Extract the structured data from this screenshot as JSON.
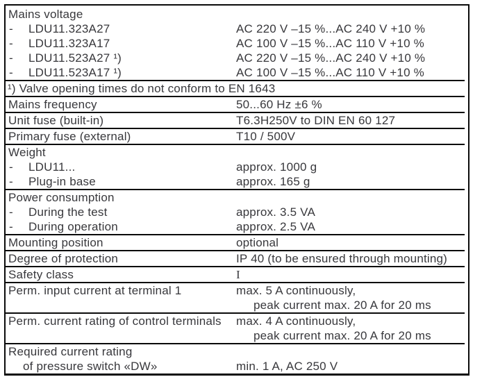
{
  "document": {
    "kind": "technical-data-table",
    "colors": {
      "text": "#38383c",
      "rule": "#0a0a0a",
      "background": "#ffffff"
    }
  },
  "table": {
    "groups": [
      {
        "rows": [
          {
            "label": "Mains voltage"
          },
          {
            "dash": "-",
            "label": "LDU11.323A27",
            "value": "AC 220 V –15 %...AC 240 V +10 %"
          },
          {
            "dash": "-",
            "label": "LDU11.323A17",
            "value": "AC 100 V –15 %...AC 110 V +10 %"
          },
          {
            "dash": "-",
            "label": "LDU11.523A27 ¹)",
            "value": "AC 220 V –15 %...AC 240 V +10 %"
          },
          {
            "dash": "-",
            "label": "LDU11.523A17 ¹)",
            "value": "AC 100 V –15 %...AC 110 V +10 %"
          }
        ]
      },
      {
        "rows": [
          {
            "footnote": "¹) Valve opening times do not conform to EN 1643"
          }
        ]
      },
      {
        "rows": [
          {
            "label": "Mains frequency",
            "value": "50...60 Hz ±6 %"
          }
        ]
      },
      {
        "rows": [
          {
            "label": "Unit fuse (built-in)",
            "value": "T6.3H250V to DIN EN 60 127"
          }
        ]
      },
      {
        "rows": [
          {
            "label": "Primary fuse (external)",
            "value": "T10 / 500V"
          }
        ]
      },
      {
        "rows": [
          {
            "label": "Weight"
          },
          {
            "dash": "-",
            "label": "LDU11...",
            "value": "approx. 1000 g"
          },
          {
            "dash": "-",
            "label": "Plug-in base",
            "value": "approx. 165 g"
          }
        ]
      },
      {
        "rows": [
          {
            "label": "Power consumption"
          },
          {
            "dash": "-",
            "label": "During the test",
            "value": "approx. 3.5 VA"
          },
          {
            "dash": "-",
            "label": "During operation",
            "value": "approx. 2.5 VA"
          }
        ]
      },
      {
        "rows": [
          {
            "label": "Mounting position",
            "value": "optional"
          }
        ]
      },
      {
        "rows": [
          {
            "label": "Degree of protection",
            "value": "IP 40 (to be ensured through mounting)"
          }
        ]
      },
      {
        "rows": [
          {
            "label": "Safety class",
            "value": "I"
          }
        ]
      },
      {
        "rows": [
          {
            "label": "Perm. input current at terminal 1",
            "value": "max. 5 A continuously,"
          },
          {
            "label": "",
            "value": "peak current max. 20 A for 20 ms"
          }
        ]
      },
      {
        "rows": [
          {
            "label": "Perm. current rating of control terminals",
            "value": "max. 4 A continuously,"
          },
          {
            "label": "",
            "value": "peak current max. 20 A for 20 ms"
          }
        ]
      },
      {
        "rows": [
          {
            "label": "Required current rating"
          },
          {
            "label": "of pressure switch «DW»",
            "value": "min. 1 A, AC 250 V"
          }
        ]
      }
    ]
  }
}
